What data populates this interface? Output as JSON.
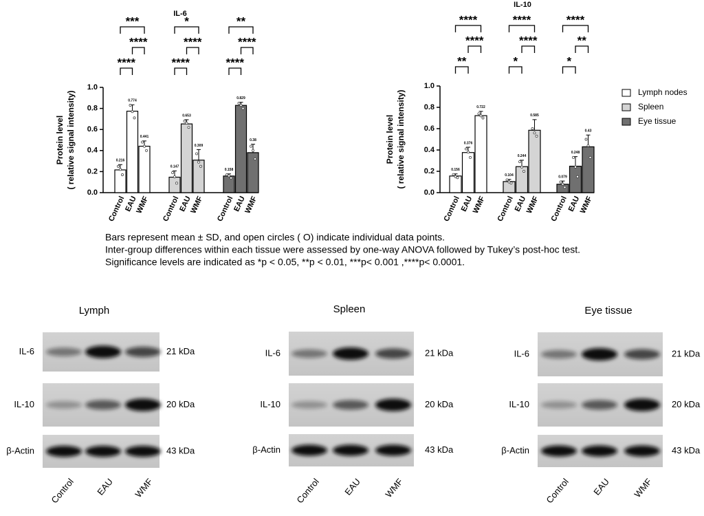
{
  "chart_data": [
    {
      "type": "bar",
      "title": "IL-6",
      "y_label": [
        "Protein level",
        "( relative signal intensity)"
      ],
      "categories": [
        "Control",
        "EAU",
        "WMF"
      ],
      "ylim": [
        0,
        1.0
      ],
      "yticks": [
        {
          "value": 0,
          "label": "0.0"
        },
        0.2,
        0.4,
        0.6,
        0.8,
        {
          "value": 1.0,
          "label": "1.0"
        }
      ],
      "series": [
        {
          "name": "Lymph nodes",
          "color": "#ffffff",
          "values": [
            0.216,
            0.774,
            0.441
          ],
          "errors": [
            0.05,
            0.06,
            0.05
          ],
          "points": [
            [
              0.25,
              0.22,
              0.17
            ],
            [
              0.83,
              0.77,
              0.71
            ],
            [
              0.48,
              0.44,
              0.4
            ]
          ]
        },
        {
          "name": "Spleen",
          "color": "#d4d4d4",
          "values": [
            0.147,
            0.653,
            0.309
          ],
          "errors": [
            0.06,
            0.04,
            0.1
          ],
          "points": [
            [
              0.19,
              0.15,
              0.09
            ],
            [
              0.68,
              0.66,
              0.62
            ],
            [
              0.37,
              0.29,
              0.25
            ]
          ]
        },
        {
          "name": "Eye tissue",
          "color": "#707070",
          "values": [
            0.158,
            0.829,
            0.38
          ],
          "errors": [
            0.02,
            0.03,
            0.08
          ],
          "points": [
            [
              0.17,
              0.16,
              0.14
            ],
            [
              0.85,
              0.83,
              0.8
            ],
            [
              0.44,
              0.4,
              0.32
            ]
          ]
        }
      ],
      "annotations": [
        {
          "group": "Lymph nodes",
          "pair": [
            "Control",
            "EAU"
          ],
          "label": "****"
        },
        {
          "group": "Lymph nodes",
          "pair": [
            "EAU",
            "WMF"
          ],
          "label": "****"
        },
        {
          "group": "Lymph nodes",
          "pair": [
            "Control",
            "WMF"
          ],
          "label": "***"
        },
        {
          "group": "Spleen",
          "pair": [
            "Control",
            "EAU"
          ],
          "label": "****"
        },
        {
          "group": "Spleen",
          "pair": [
            "EAU",
            "WMF"
          ],
          "label": "****"
        },
        {
          "group": "Spleen",
          "pair": [
            "Control",
            "WMF"
          ],
          "label": "*"
        },
        {
          "group": "Eye tissue",
          "pair": [
            "Control",
            "EAU"
          ],
          "label": "****"
        },
        {
          "group": "Eye tissue",
          "pair": [
            "EAU",
            "WMF"
          ],
          "label": "****"
        },
        {
          "group": "Eye tissue",
          "pair": [
            "Control",
            "WMF"
          ],
          "label": "**"
        }
      ]
    },
    {
      "type": "bar",
      "title": "IL-10",
      "y_label": [
        "Protein level",
        "( relative signal intensity)"
      ],
      "categories": [
        "Control",
        "EAU",
        "WMF"
      ],
      "ylim": [
        0,
        1.0
      ],
      "yticks": [
        {
          "value": 0,
          "label": "0.0"
        },
        0.2,
        0.4,
        0.6,
        0.8,
        {
          "value": 1.0,
          "label": "1.0"
        }
      ],
      "legend": "right",
      "series": [
        {
          "name": "Lymph nodes",
          "color": "#ffffff",
          "values": [
            0.156,
            0.376,
            0.722
          ],
          "errors": [
            0.02,
            0.05,
            0.04
          ],
          "points": [
            [
              0.17,
              0.15,
              0.14
            ],
            [
              0.41,
              0.38,
              0.33
            ],
            [
              0.74,
              0.72,
              0.7
            ]
          ]
        },
        {
          "name": "Spleen",
          "color": "#d4d4d4",
          "values": [
            0.104,
            0.244,
            0.585
          ],
          "errors": [
            0.02,
            0.06,
            0.1
          ],
          "points": [
            [
              0.12,
              0.1,
              0.09
            ],
            [
              0.29,
              0.24,
              0.2
            ],
            [
              0.6,
              0.56,
              0.53
            ]
          ]
        },
        {
          "name": "Eye tissue",
          "color": "#707070",
          "values": [
            0.079,
            0.248,
            0.43
          ],
          "errors": [
            0.03,
            0.09,
            0.11
          ],
          "points": [
            [
              0.1,
              0.08,
              0.05
            ],
            [
              0.33,
              0.24,
              0.15
            ],
            [
              0.5,
              0.44,
              0.33
            ]
          ]
        }
      ],
      "annotations": [
        {
          "group": "Lymph nodes",
          "pair": [
            "Control",
            "EAU"
          ],
          "label": "**"
        },
        {
          "group": "Lymph nodes",
          "pair": [
            "EAU",
            "WMF"
          ],
          "label": "****"
        },
        {
          "group": "Lymph nodes",
          "pair": [
            "Control",
            "WMF"
          ],
          "label": "****"
        },
        {
          "group": "Spleen",
          "pair": [
            "Control",
            "EAU"
          ],
          "label": "*"
        },
        {
          "group": "Spleen",
          "pair": [
            "EAU",
            "WMF"
          ],
          "label": "****"
        },
        {
          "group": "Spleen",
          "pair": [
            "Control",
            "WMF"
          ],
          "label": "****"
        },
        {
          "group": "Eye tissue",
          "pair": [
            "Control",
            "EAU"
          ],
          "label": "*"
        },
        {
          "group": "Eye tissue",
          "pair": [
            "EAU",
            "WMF"
          ],
          "label": "**"
        },
        {
          "group": "Eye tissue",
          "pair": [
            "Control",
            "WMF"
          ],
          "label": "****"
        }
      ]
    }
  ],
  "caption": [
    "Bars represent mean ± SD, and open circles ( O) indicate individual data points.",
    "Inter-group differences within each tissue were assessed by one-way ANOVA followed by Tukey’s post-hoc test.",
    "Significance levels are indicated as *p < 0.05, **p < 0.01,  ***p< 0.001 ,****p< 0.0001."
  ],
  "blots": {
    "panels": [
      "Lymph",
      "Spleen",
      "Eye tissue"
    ],
    "rows": [
      {
        "protein": "IL-6",
        "size": "21 kDa"
      },
      {
        "protein": "IL-10",
        "size": "20 kDa"
      },
      {
        "protein": "β-Actin",
        "size": "43 kDa"
      }
    ],
    "lanes": [
      "Control",
      "EAU",
      "WMF"
    ]
  }
}
